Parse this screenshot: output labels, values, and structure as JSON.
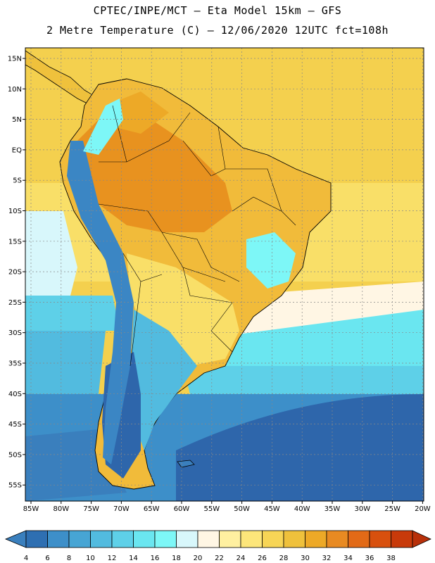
{
  "header": {
    "line1": "CPTEC/INPE/MCT –  Eta Model 15km – GFS",
    "line2": "2 Metre Temperature (C) – 12/06/2020 12UTC fct=108h"
  },
  "map": {
    "lat_labels": [
      "15N",
      "10N",
      "5N",
      "EQ",
      "5S",
      "10S",
      "15S",
      "20S",
      "25S",
      "30S",
      "35S",
      "40S",
      "45S",
      "50S",
      "55S"
    ],
    "lon_labels": [
      "85W",
      "80W",
      "75W",
      "70W",
      "65W",
      "60W",
      "55W",
      "50W",
      "45W",
      "40W",
      "35W",
      "30W",
      "25W",
      "20W"
    ]
  },
  "colorbar": {
    "ticks": [
      "4",
      "6",
      "8",
      "10",
      "12",
      "14",
      "16",
      "18",
      "20",
      "22",
      "24",
      "26",
      "28",
      "30",
      "32",
      "34",
      "36",
      "38"
    ],
    "colors": [
      "#3a7fbd",
      "#2e6fb2",
      "#3d8fc9",
      "#47a5d4",
      "#52bbdf",
      "#5ed0e8",
      "#6ae6f0",
      "#7df7f7",
      "#d8f7fb",
      "#fff6e4",
      "#fff0a0",
      "#fde67a",
      "#f7d556",
      "#efc13c",
      "#eda927",
      "#e88a22",
      "#e26a17",
      "#d8500e",
      "#c83a0a",
      "#b8300a"
    ]
  },
  "colors": {
    "ocean_cold": "#2e66ab",
    "ocean_mid": "#45b4dc",
    "ocean_cool": "#5ee0ee",
    "ocean_warm": "#f4d04e",
    "ocean_tropic": "#f7d556",
    "land_hot": "#e8921f",
    "land_warm": "#f1bb3a",
    "andes": "#3b86c4"
  }
}
